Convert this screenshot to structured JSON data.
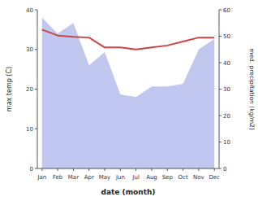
{
  "chart_data": {
    "type": "line",
    "categories": [
      "Jan",
      "Feb",
      "Mar",
      "Apr",
      "May",
      "Jun",
      "Jul",
      "Aug",
      "Sep",
      "Oct",
      "Nov",
      "Dec"
    ],
    "series": [
      {
        "type": "area",
        "axis": "y2",
        "color": "#c0c8f0",
        "values": [
          57.0,
          51.0,
          55.0,
          39.0,
          44.0,
          28.0,
          27.0,
          31.0,
          31.0,
          32.0,
          45.0,
          49.0
        ]
      },
      {
        "type": "line",
        "color": "#cc4444",
        "values": [
          35.0,
          33.5,
          33.2,
          33.0,
          30.5,
          30.5,
          30.0,
          30.5,
          31.0,
          32.0,
          33.0,
          33.0
        ]
      }
    ],
    "x_label": "date (month)",
    "y_label": "max temp (C)",
    "y2_label": "med. precipitation (kg/m2)",
    "ylim": [
      0,
      40
    ],
    "yticks": [
      0,
      10,
      20,
      30,
      40
    ],
    "y2lim": [
      0,
      60
    ],
    "y2ticks": [
      0,
      10,
      20,
      30,
      40,
      50,
      60
    ],
    "grid": false
  }
}
